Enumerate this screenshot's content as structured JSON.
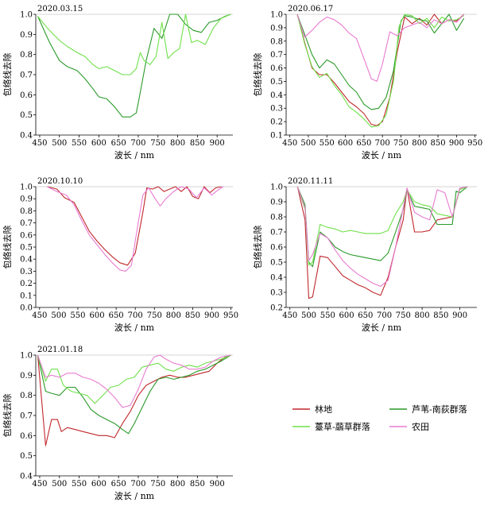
{
  "colors": {
    "forest": "#c0282d",
    "reed": "#2a9a2a",
    "sedge": "#6fe04a",
    "farmland": "#e87bd0"
  },
  "legend": [
    {
      "key": "forest",
      "label": "林地"
    },
    {
      "key": "reed",
      "label": "芦苇-南荻群落"
    },
    {
      "key": "sedge",
      "label": "薹草-虉草群落"
    },
    {
      "key": "farmland",
      "label": "农田"
    }
  ],
  "chart_data": [
    {
      "type": "line",
      "title": "2020.03.15",
      "xlabel": "波长 / nm",
      "ylabel": "包络线去除",
      "xlim": [
        440,
        940
      ],
      "ylim": [
        0.4,
        1.0
      ],
      "xticks": [
        450,
        500,
        550,
        600,
        650,
        700,
        750,
        800,
        850,
        900
      ],
      "yticks": [
        0.4,
        0.5,
        0.6,
        0.7,
        0.8,
        0.9,
        1.0
      ],
      "series": [
        {
          "key": "reed",
          "name": "芦苇-南荻群落",
          "x": [
            445,
            475,
            500,
            520,
            545,
            565,
            585,
            600,
            620,
            640,
            660,
            680,
            695,
            705,
            720,
            740,
            760,
            780,
            800,
            820,
            840,
            860,
            880,
            900,
            920,
            935
          ],
          "y": [
            0.99,
            0.86,
            0.77,
            0.74,
            0.72,
            0.68,
            0.63,
            0.59,
            0.58,
            0.54,
            0.49,
            0.49,
            0.51,
            0.61,
            0.77,
            0.93,
            0.88,
            1.0,
            1.0,
            0.95,
            0.92,
            0.91,
            0.96,
            0.97,
            0.99,
            1.0
          ]
        },
        {
          "key": "sedge",
          "name": "薹草-虉草群落",
          "x": [
            445,
            470,
            500,
            520,
            545,
            565,
            585,
            600,
            620,
            640,
            660,
            680,
            695,
            705,
            715,
            730,
            745,
            760,
            775,
            790,
            805,
            820,
            835,
            850,
            870,
            890,
            910,
            935
          ],
          "y": [
            0.99,
            0.93,
            0.87,
            0.84,
            0.81,
            0.79,
            0.75,
            0.73,
            0.74,
            0.72,
            0.7,
            0.7,
            0.73,
            0.81,
            0.77,
            0.75,
            0.79,
            0.96,
            0.78,
            0.81,
            0.83,
            1.0,
            0.86,
            0.87,
            0.85,
            0.93,
            0.98,
            1.0
          ]
        }
      ]
    },
    {
      "type": "line",
      "title": "2020.06.17",
      "xlabel": "波长 / nm",
      "ylabel": "包络线去除",
      "xlim": [
        440,
        955
      ],
      "ylim": [
        0.1,
        1.0
      ],
      "xticks": [
        450,
        500,
        550,
        600,
        650,
        700,
        750,
        800,
        850,
        900,
        950
      ],
      "yticks": [
        0.1,
        0.2,
        0.3,
        0.4,
        0.5,
        0.6,
        0.7,
        0.8,
        0.9,
        1.0
      ],
      "series": [
        {
          "key": "forest",
          "name": "林地",
          "x": [
            470,
            490,
            510,
            530,
            550,
            570,
            590,
            610,
            630,
            650,
            670,
            685,
            700,
            720,
            740,
            760,
            780,
            800,
            820,
            840,
            860,
            880,
            900,
            920
          ],
          "y": [
            1.0,
            0.79,
            0.6,
            0.55,
            0.55,
            0.49,
            0.42,
            0.35,
            0.31,
            0.26,
            0.18,
            0.17,
            0.2,
            0.38,
            0.72,
            0.98,
            0.93,
            0.97,
            0.92,
            1.0,
            0.93,
            0.96,
            0.95,
            1.0
          ]
        },
        {
          "key": "reed",
          "name": "芦苇-南荻群落",
          "x": [
            470,
            490,
            510,
            530,
            550,
            570,
            590,
            610,
            630,
            650,
            670,
            690,
            710,
            730,
            750,
            760,
            780,
            800,
            820,
            840,
            860,
            880,
            900,
            920
          ],
          "y": [
            1.0,
            0.85,
            0.7,
            0.6,
            0.66,
            0.63,
            0.55,
            0.47,
            0.42,
            0.33,
            0.29,
            0.3,
            0.38,
            0.58,
            0.95,
            0.99,
            0.98,
            0.96,
            0.95,
            0.86,
            0.93,
            1.0,
            0.88,
            0.97
          ]
        },
        {
          "key": "sedge",
          "name": "薹草-虉草群落",
          "x": [
            470,
            490,
            510,
            530,
            550,
            570,
            590,
            610,
            630,
            650,
            670,
            690,
            710,
            730,
            745,
            760,
            780,
            800,
            820,
            840,
            860,
            880,
            900,
            920
          ],
          "y": [
            1.0,
            0.78,
            0.61,
            0.53,
            0.56,
            0.47,
            0.4,
            0.31,
            0.27,
            0.22,
            0.16,
            0.17,
            0.25,
            0.5,
            0.91,
            1.0,
            0.99,
            0.93,
            0.97,
            0.9,
            0.98,
            0.95,
            0.96,
            0.99
          ]
        },
        {
          "key": "farmland",
          "name": "农田",
          "x": [
            470,
            490,
            510,
            530,
            550,
            570,
            590,
            610,
            630,
            650,
            670,
            685,
            700,
            720,
            740,
            760,
            780,
            800,
            820,
            840,
            860,
            880,
            900,
            920
          ],
          "y": [
            1.0,
            0.83,
            0.88,
            0.94,
            0.98,
            0.96,
            0.92,
            0.86,
            0.82,
            0.67,
            0.52,
            0.5,
            0.63,
            0.87,
            0.84,
            0.9,
            0.92,
            0.94,
            0.9,
            0.96,
            0.93,
            0.96,
            0.94,
            1.0
          ]
        }
      ]
    },
    {
      "type": "line",
      "title": "2020.10.10",
      "xlabel": "波长 / nm",
      "ylabel": "包络线去除",
      "xlim": [
        440,
        955
      ],
      "ylim": [
        0.0,
        1.0
      ],
      "xticks": [
        450,
        500,
        550,
        600,
        650,
        700,
        750,
        800,
        850,
        900,
        950
      ],
      "yticks": [
        0.0,
        0.1,
        0.2,
        0.3,
        0.4,
        0.5,
        0.6,
        0.7,
        0.8,
        0.9,
        1.0
      ],
      "series": [
        {
          "key": "forest",
          "name": "林地",
          "x": [
            470,
            495,
            515,
            540,
            560,
            580,
            600,
            620,
            640,
            660,
            680,
            700,
            720,
            730,
            745,
            760,
            775,
            790,
            805,
            820,
            835,
            850,
            865,
            880,
            895,
            910,
            925
          ],
          "y": [
            1.0,
            0.98,
            0.91,
            0.87,
            0.75,
            0.63,
            0.55,
            0.48,
            0.42,
            0.37,
            0.35,
            0.45,
            0.79,
            0.99,
            0.98,
            1.0,
            0.96,
            0.98,
            1.0,
            0.96,
            1.0,
            0.92,
            0.9,
            1.0,
            0.95,
            0.99,
            1.0
          ]
        },
        {
          "key": "farmland",
          "name": "农田",
          "x": [
            470,
            495,
            520,
            540,
            560,
            580,
            600,
            620,
            640,
            660,
            675,
            690,
            705,
            720,
            735,
            750,
            765,
            780,
            800,
            820,
            840,
            860,
            880,
            900,
            915,
            930
          ],
          "y": [
            1.0,
            0.96,
            0.93,
            0.85,
            0.72,
            0.6,
            0.52,
            0.44,
            0.37,
            0.31,
            0.3,
            0.35,
            0.65,
            0.93,
            0.99,
            0.91,
            0.84,
            0.9,
            0.96,
            1.0,
            0.98,
            0.91,
            0.99,
            0.93,
            0.97,
            1.0
          ]
        }
      ]
    },
    {
      "type": "line",
      "title": "2020.11.11",
      "xlabel": "波长 / nm",
      "ylabel": "包络线去除",
      "xlim": [
        440,
        945
      ],
      "ylim": [
        0.2,
        1.0
      ],
      "xticks": [
        450,
        500,
        550,
        600,
        650,
        700,
        750,
        800,
        850,
        900
      ],
      "yticks": [
        0.2,
        0.3,
        0.4,
        0.5,
        0.6,
        0.7,
        0.8,
        0.9,
        1.0
      ],
      "series": [
        {
          "key": "forest",
          "name": "林地",
          "x": [
            470,
            490,
            500,
            510,
            530,
            550,
            570,
            590,
            610,
            630,
            650,
            670,
            690,
            710,
            730,
            750,
            760,
            780,
            800,
            820,
            840,
            860,
            880,
            900,
            920
          ],
          "y": [
            1.0,
            0.78,
            0.26,
            0.27,
            0.54,
            0.53,
            0.47,
            0.41,
            0.38,
            0.35,
            0.33,
            0.3,
            0.28,
            0.4,
            0.6,
            0.78,
            0.99,
            0.7,
            0.7,
            0.71,
            0.78,
            0.79,
            0.8,
            0.99,
            1.0
          ]
        },
        {
          "key": "reed",
          "name": "芦苇-南荻群落",
          "x": [
            470,
            490,
            500,
            510,
            530,
            550,
            570,
            590,
            610,
            630,
            650,
            670,
            690,
            710,
            730,
            750,
            760,
            780,
            800,
            820,
            840,
            860,
            880,
            890,
            900,
            920
          ],
          "y": [
            1.0,
            0.88,
            0.5,
            0.47,
            0.7,
            0.66,
            0.6,
            0.57,
            0.55,
            0.54,
            0.53,
            0.52,
            0.51,
            0.56,
            0.7,
            0.85,
            0.98,
            0.87,
            0.86,
            0.85,
            0.75,
            0.75,
            0.75,
            0.97,
            0.96,
            1.0
          ]
        },
        {
          "key": "sedge",
          "name": "薹草-虉草群落",
          "x": [
            470,
            490,
            500,
            510,
            530,
            550,
            570,
            590,
            610,
            630,
            650,
            670,
            690,
            710,
            730,
            750,
            760,
            780,
            800,
            820,
            840,
            860,
            880,
            900,
            920
          ],
          "y": [
            1.0,
            0.85,
            0.48,
            0.5,
            0.75,
            0.73,
            0.72,
            0.7,
            0.71,
            0.7,
            0.69,
            0.69,
            0.69,
            0.71,
            0.82,
            0.9,
            0.98,
            0.9,
            0.88,
            0.87,
            0.82,
            0.81,
            0.8,
            0.98,
            1.0
          ]
        },
        {
          "key": "farmland",
          "name": "农田",
          "x": [
            470,
            490,
            500,
            510,
            530,
            550,
            570,
            590,
            610,
            630,
            650,
            670,
            690,
            710,
            730,
            750,
            760,
            780,
            800,
            820,
            840,
            860,
            880,
            900,
            920
          ],
          "y": [
            1.0,
            0.86,
            0.51,
            0.55,
            0.69,
            0.66,
            0.58,
            0.51,
            0.46,
            0.42,
            0.39,
            0.36,
            0.34,
            0.38,
            0.6,
            0.86,
            0.99,
            0.83,
            0.8,
            0.78,
            0.98,
            0.96,
            0.8,
            0.99,
            1.0
          ]
        }
      ]
    },
    {
      "type": "line",
      "title": "2021.01.18",
      "xlabel": "波长 / nm",
      "ylabel": "包络线去除",
      "xlim": [
        440,
        940
      ],
      "ylim": [
        0.4,
        1.0
      ],
      "xticks": [
        450,
        500,
        550,
        600,
        650,
        700,
        750,
        800,
        850,
        900
      ],
      "yticks": [
        0.4,
        0.5,
        0.6,
        0.7,
        0.8,
        0.9,
        1.0
      ],
      "series": [
        {
          "key": "forest",
          "name": "林地",
          "x": [
            445,
            465,
            480,
            495,
            505,
            520,
            540,
            560,
            580,
            600,
            620,
            640,
            660,
            680,
            700,
            720,
            740,
            760,
            780,
            800,
            820,
            840,
            860,
            880,
            900,
            920,
            935
          ],
          "y": [
            1.0,
            0.55,
            0.68,
            0.68,
            0.62,
            0.64,
            0.63,
            0.62,
            0.61,
            0.6,
            0.6,
            0.59,
            0.66,
            0.72,
            0.8,
            0.85,
            0.87,
            0.89,
            0.9,
            0.89,
            0.89,
            0.9,
            0.91,
            0.92,
            0.96,
            0.99,
            1.0
          ]
        },
        {
          "key": "reed",
          "name": "芦苇-南荻群落",
          "x": [
            445,
            465,
            480,
            500,
            520,
            540,
            560,
            580,
            600,
            620,
            640,
            660,
            675,
            690,
            710,
            730,
            750,
            770,
            790,
            810,
            830,
            850,
            870,
            890,
            910,
            935
          ],
          "y": [
            1.0,
            0.82,
            0.81,
            0.8,
            0.84,
            0.84,
            0.79,
            0.73,
            0.7,
            0.68,
            0.66,
            0.63,
            0.61,
            0.66,
            0.74,
            0.82,
            0.88,
            0.89,
            0.88,
            0.89,
            0.9,
            0.92,
            0.93,
            0.95,
            0.97,
            1.0
          ]
        },
        {
          "key": "sedge",
          "name": "薹草-虉草群落",
          "x": [
            445,
            465,
            480,
            495,
            510,
            530,
            550,
            570,
            590,
            610,
            630,
            650,
            670,
            690,
            710,
            730,
            750,
            770,
            790,
            810,
            830,
            850,
            870,
            890,
            910,
            935
          ],
          "y": [
            1.0,
            0.87,
            0.93,
            0.93,
            0.85,
            0.82,
            0.81,
            0.8,
            0.76,
            0.8,
            0.84,
            0.85,
            0.88,
            0.89,
            0.94,
            0.95,
            0.96,
            0.93,
            0.92,
            0.94,
            0.95,
            0.94,
            0.96,
            0.97,
            0.98,
            1.0
          ]
        },
        {
          "key": "farmland",
          "name": "农田",
          "x": [
            445,
            465,
            480,
            500,
            520,
            540,
            560,
            580,
            600,
            620,
            640,
            660,
            680,
            700,
            720,
            740,
            755,
            770,
            790,
            810,
            830,
            850,
            870,
            890,
            910,
            935
          ],
          "y": [
            1.0,
            0.89,
            0.9,
            0.89,
            0.91,
            0.91,
            0.89,
            0.88,
            0.86,
            0.83,
            0.79,
            0.74,
            0.75,
            0.83,
            0.93,
            0.99,
            1.0,
            0.98,
            0.96,
            0.95,
            0.93,
            0.93,
            0.94,
            0.97,
            0.99,
            1.0
          ]
        }
      ]
    }
  ]
}
